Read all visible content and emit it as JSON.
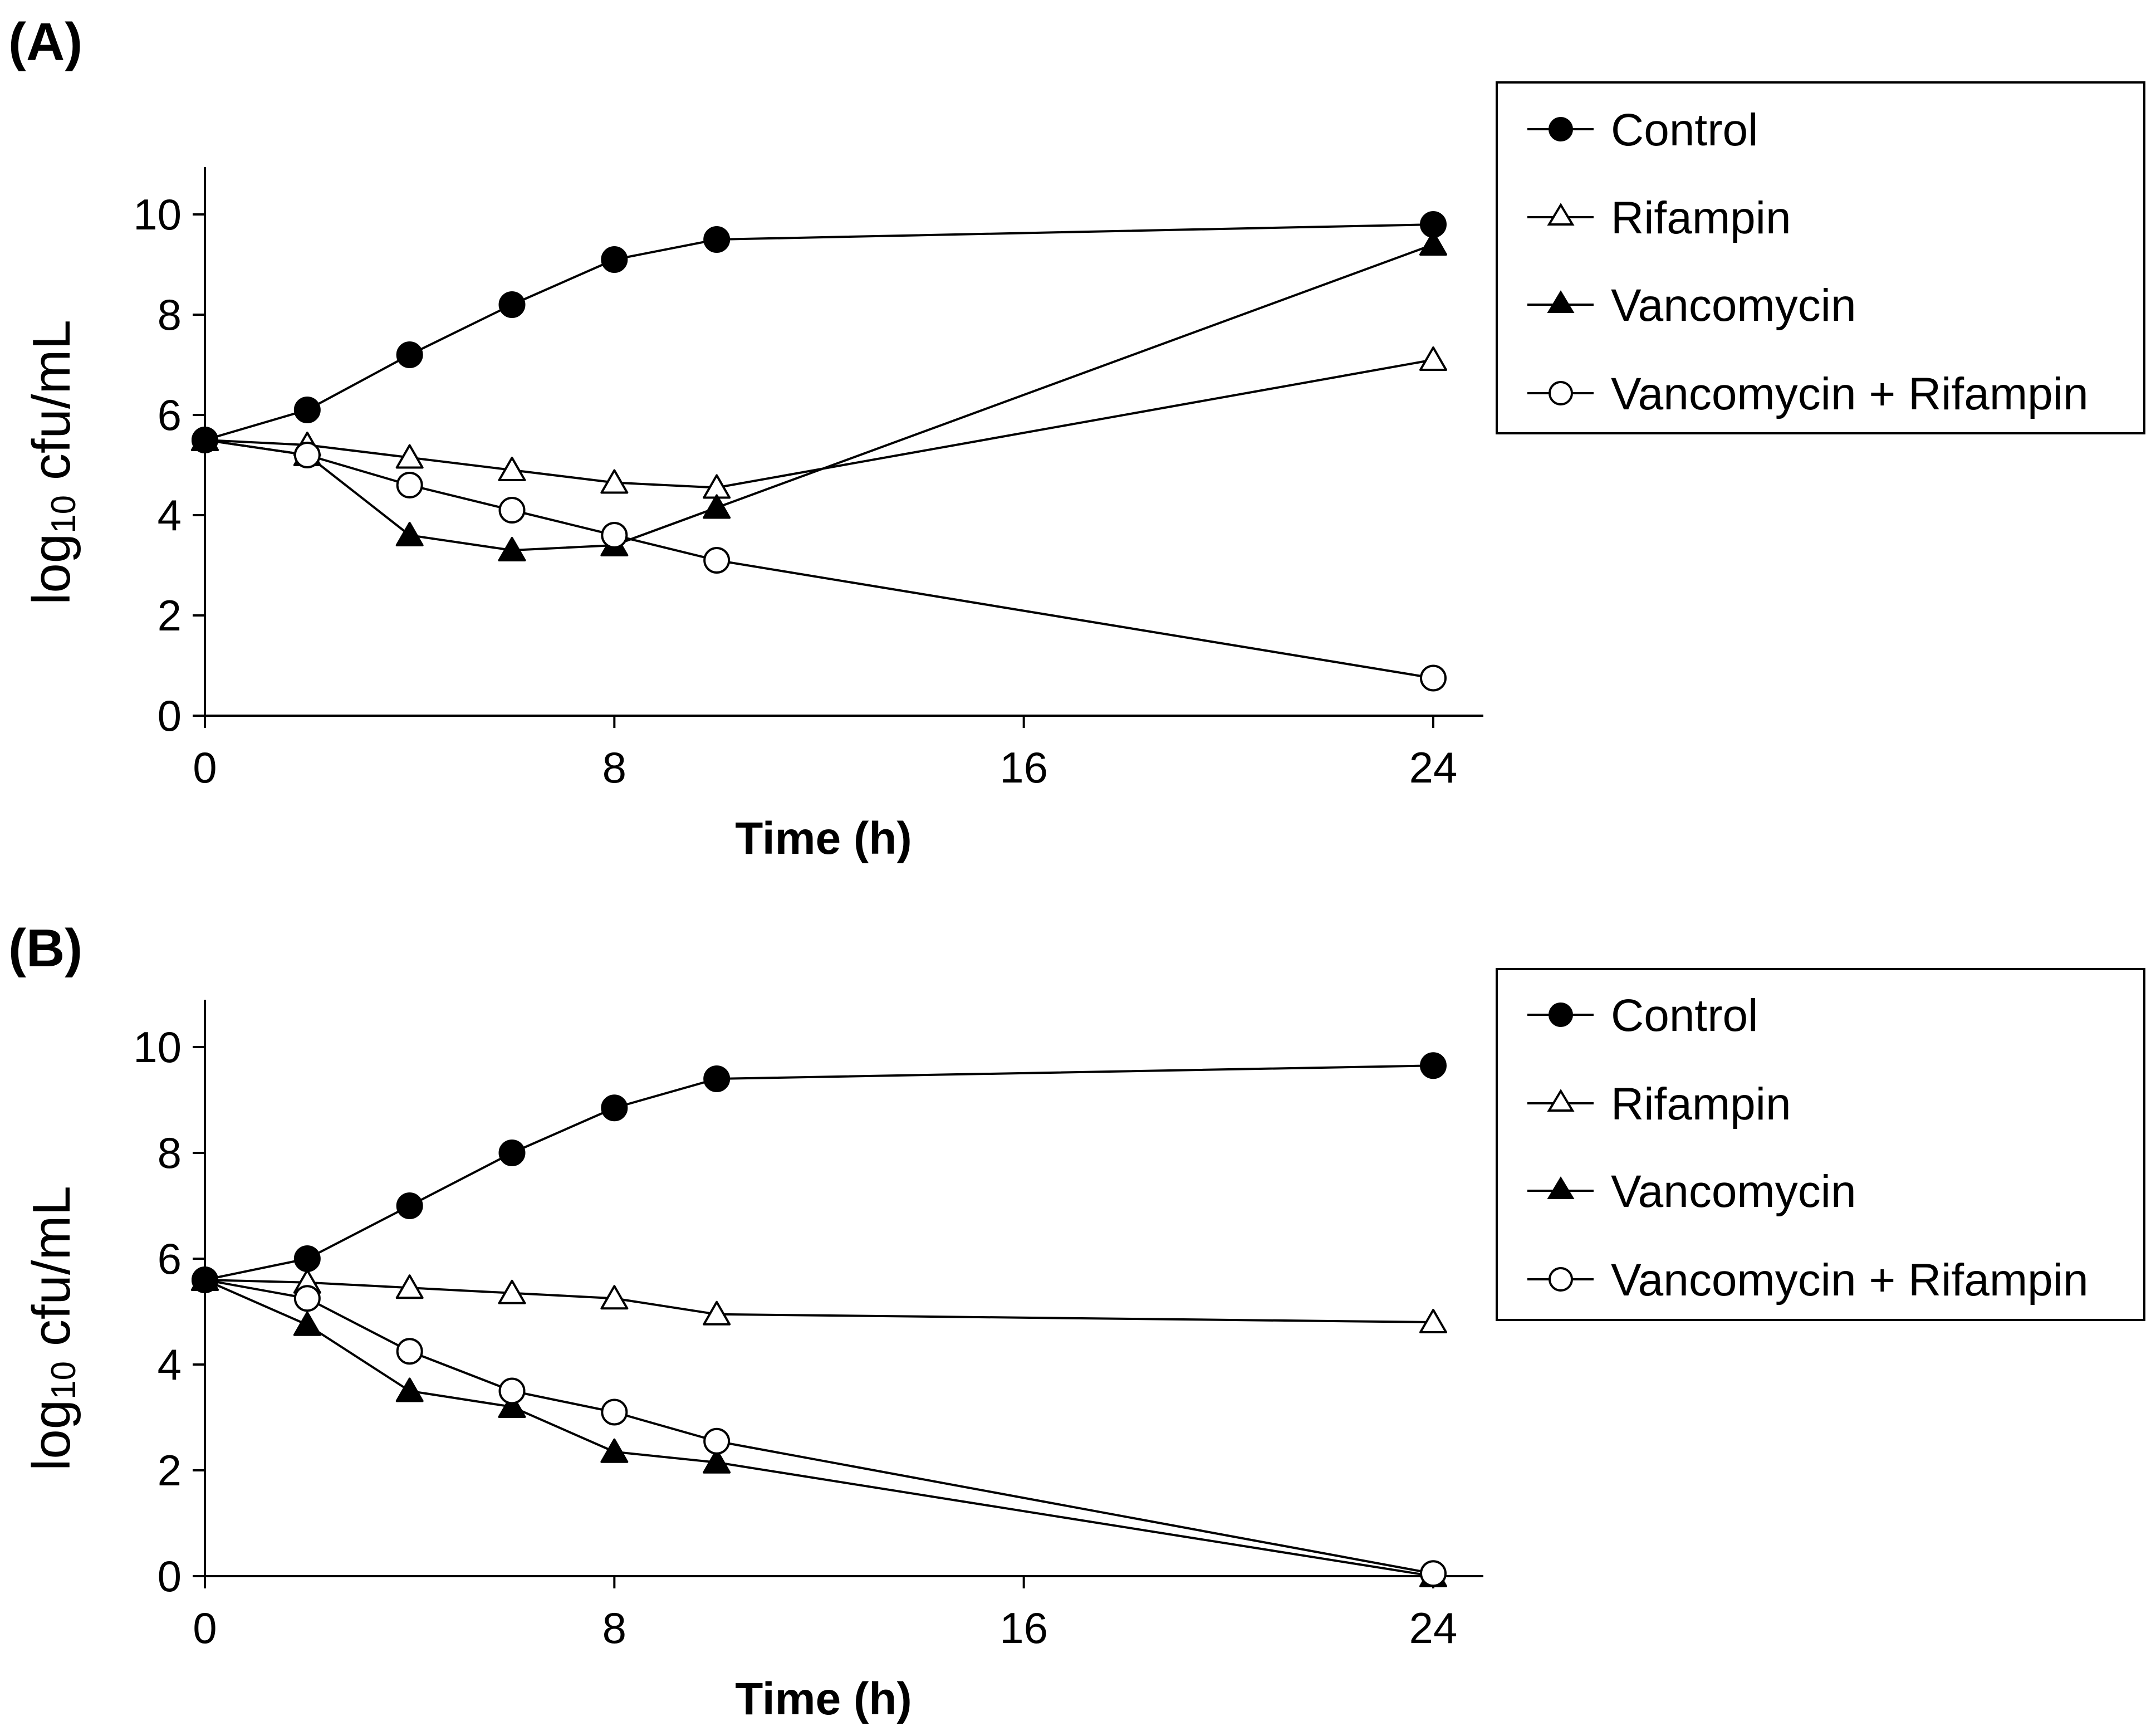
{
  "panels": {
    "A": {
      "label": "(A)"
    },
    "B": {
      "label": "(B)"
    }
  },
  "axes": {
    "xlabel": "Time (h)",
    "ylabel_log": "log",
    "ylabel_sub": "10",
    "ylabel_unit": " cfu/mL"
  },
  "legend": {
    "control": "Control",
    "rifampin": "Rifampin",
    "vancomycin": "Vancomycin",
    "combo": "Vancomycin + Rifampin"
  },
  "chart_data": [
    {
      "type": "line",
      "panel": "(A)",
      "xlabel": "Time (h)",
      "ylabel": "log10 cfu/mL",
      "xlim": [
        0,
        25
      ],
      "ylim": [
        0,
        11
      ],
      "xticks": [
        0,
        8,
        16,
        24
      ],
      "yticks": [
        0,
        2,
        4,
        6,
        8,
        10
      ],
      "series": [
        {
          "key": "control",
          "name": "Control",
          "marker": "filled-circle",
          "x": [
            0,
            2,
            4,
            6,
            8,
            10,
            24
          ],
          "y": [
            5.5,
            6.1,
            7.2,
            8.2,
            9.1,
            9.5,
            9.8
          ]
        },
        {
          "key": "rifampin",
          "name": "Rifampin",
          "marker": "open-triangle",
          "x": [
            0,
            2,
            4,
            6,
            8,
            10,
            24
          ],
          "y": [
            5.5,
            5.4,
            5.15,
            4.9,
            4.65,
            4.55,
            7.1
          ]
        },
        {
          "key": "vancomycin",
          "name": "Vancomycin",
          "marker": "filled-triangle",
          "x": [
            0,
            2,
            4,
            6,
            8,
            10,
            24
          ],
          "y": [
            5.5,
            5.2,
            3.6,
            3.3,
            3.4,
            4.15,
            9.4
          ]
        },
        {
          "key": "combo",
          "name": "Vancomycin + Rifampin",
          "marker": "open-circle",
          "x": [
            0,
            2,
            4,
            6,
            8,
            10,
            24
          ],
          "y": [
            5.5,
            5.2,
            4.6,
            4.1,
            3.6,
            3.1,
            0.75
          ]
        }
      ]
    },
    {
      "type": "line",
      "panel": "(B)",
      "xlabel": "Time (h)",
      "ylabel": "log10 cfu/mL",
      "xlim": [
        0,
        25
      ],
      "ylim": [
        0,
        11
      ],
      "xticks": [
        0,
        8,
        16,
        24
      ],
      "yticks": [
        0,
        2,
        4,
        6,
        8,
        10
      ],
      "series": [
        {
          "key": "control",
          "name": "Control",
          "marker": "filled-circle",
          "x": [
            0,
            2,
            4,
            6,
            8,
            10,
            24
          ],
          "y": [
            5.6,
            6.0,
            7.0,
            8.0,
            8.85,
            9.4,
            9.65
          ]
        },
        {
          "key": "rifampin",
          "name": "Rifampin",
          "marker": "open-triangle",
          "x": [
            0,
            2,
            4,
            6,
            8,
            10,
            24
          ],
          "y": [
            5.6,
            5.55,
            5.45,
            5.35,
            5.25,
            4.95,
            4.8
          ]
        },
        {
          "key": "vancomycin",
          "name": "Vancomycin",
          "marker": "filled-triangle",
          "x": [
            0,
            2,
            4,
            6,
            8,
            10,
            24
          ],
          "y": [
            5.6,
            4.75,
            3.5,
            3.2,
            2.35,
            2.15,
            0.0
          ]
        },
        {
          "key": "combo",
          "name": "Vancomycin + Rifampin",
          "marker": "open-circle",
          "x": [
            0,
            2,
            4,
            6,
            8,
            10,
            24
          ],
          "y": [
            5.6,
            5.25,
            4.25,
            3.5,
            3.1,
            2.55,
            0.05
          ]
        }
      ]
    }
  ]
}
